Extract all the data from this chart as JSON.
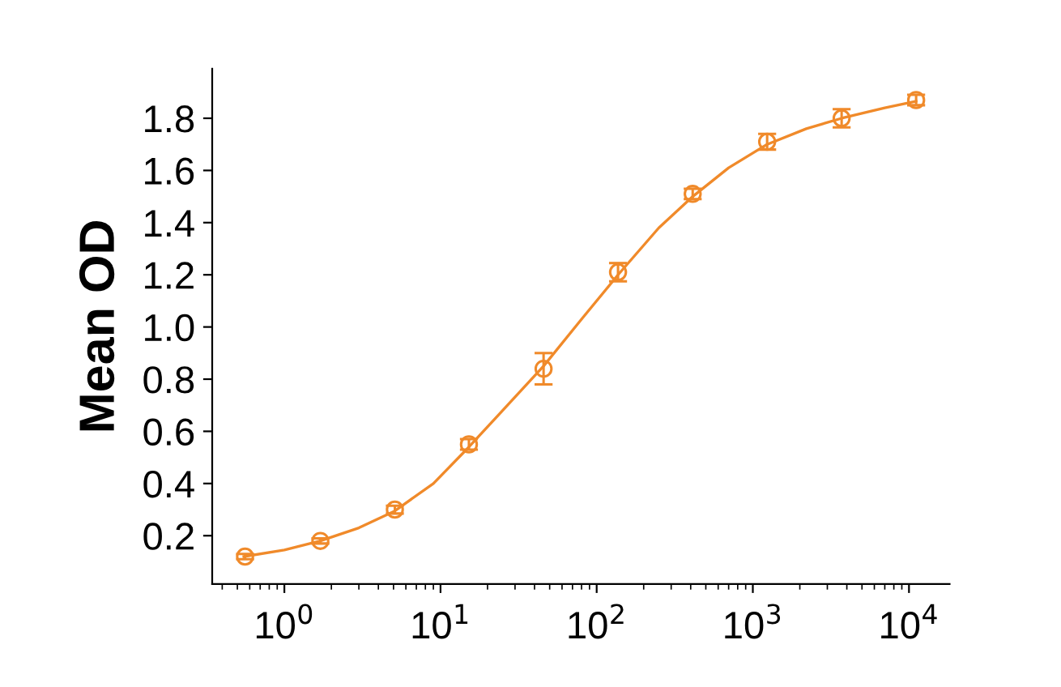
{
  "chart_data": {
    "type": "scatter",
    "ylabel": "Mean OD",
    "x": [
      0.56,
      1.7,
      5.1,
      15.2,
      45.7,
      137,
      412,
      1235,
      3704,
      11111
    ],
    "series": [
      {
        "color": "#f08a2a",
        "marker": "circle",
        "values": [
          0.12,
          0.18,
          0.3,
          0.55,
          0.84,
          1.21,
          1.51,
          1.71,
          1.8,
          1.87
        ],
        "errors": [
          0.01,
          0.01,
          0.015,
          0.02,
          0.06,
          0.035,
          0.02,
          0.03,
          0.035,
          0.02
        ]
      },
      {
        "type": "line",
        "color": "#f08a2a",
        "line_style": "solid",
        "x": [
          0.55,
          1,
          1.7,
          3,
          5.1,
          9,
          15.2,
          25,
          45.7,
          80,
          137,
          250,
          412,
          700,
          1235,
          2200,
          3704,
          7000,
          11111
        ],
        "values": [
          0.12,
          0.145,
          0.18,
          0.23,
          0.295,
          0.4,
          0.54,
          0.68,
          0.85,
          1.03,
          1.2,
          1.38,
          1.5,
          1.61,
          1.7,
          1.76,
          1.8,
          1.84,
          1.865
        ]
      }
    ],
    "log": "x",
    "xlim": [
      0.345,
      18200
    ],
    "ylim": [
      0.015,
      1.99
    ],
    "xticks": [
      {
        "value": 1,
        "label": "10$^{0}$"
      },
      {
        "value": 10,
        "label": "10$^{1}$"
      },
      {
        "value": 100,
        "label": "10$^{2}$"
      },
      {
        "value": 1000,
        "label": "10$^{3}$"
      },
      {
        "value": 10000,
        "label": "10$^{4}$"
      }
    ],
    "yticks": [
      0.2,
      0.4,
      0.6,
      0.8,
      {
        "value": 1,
        "label": "1.0"
      },
      1.2,
      1.4,
      1.6,
      1.8
    ],
    "grid": false,
    "legend": false
  }
}
